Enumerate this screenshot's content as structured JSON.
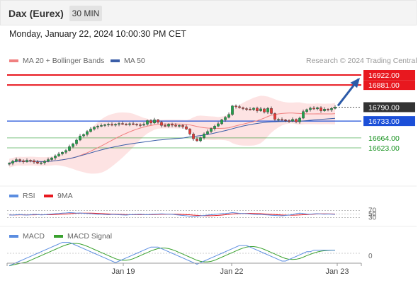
{
  "header": {
    "title": "Dax (Eurex)",
    "timeframe": "30 MIN"
  },
  "datetime": "Monday, January 22, 2024 10:00:30 PM CET",
  "legend": {
    "ma20_label": "MA 20 + Bollinger Bands",
    "ma50_label": "MA 50",
    "credit": "Research © 2024 Trading Central"
  },
  "colors": {
    "resistance": "#e8181f",
    "pivot": "#1b4fd8",
    "support": "#16911e",
    "up": "#1fa34a",
    "down": "#e53935",
    "ma20": "#f08080",
    "ma50": "#3b5ea8",
    "band": "#fde3e3",
    "rsi": "#5b8de0",
    "rsi_ma": "#e8181f",
    "macd": "#5b8de0",
    "macd_signal": "#39a12e"
  },
  "chart_data": [
    {
      "type": "candlestick",
      "levels": [
        {
          "value": 16922.0,
          "label": "16922.00",
          "kind": "resistance"
        },
        {
          "value": 16881.0,
          "label": "16881.00",
          "kind": "resistance"
        },
        {
          "value": 16790.0,
          "label": "16790.00",
          "kind": "last"
        },
        {
          "value": 16733.0,
          "label": "16733.00",
          "kind": "pivot"
        },
        {
          "value": 16664.0,
          "label": "16664.00",
          "kind": "support"
        },
        {
          "value": 16623.0,
          "label": "16623.00",
          "kind": "support"
        }
      ],
      "ylim": [
        16500,
        16950
      ],
      "close": [
        16560,
        16568,
        16575,
        16570,
        16566,
        16572,
        16570,
        16565,
        16560,
        16562,
        16568,
        16575,
        16582,
        16590,
        16598,
        16605,
        16612,
        16628,
        16640,
        16655,
        16672,
        16678,
        16690,
        16700,
        16708,
        16712,
        16715,
        16718,
        16720,
        16716,
        16720,
        16723,
        16721,
        16720,
        16722,
        16720,
        16718,
        16716,
        16720,
        16735,
        16725,
        16738,
        16728,
        16715,
        16712,
        16720,
        16716,
        16712,
        16715,
        16710,
        16700,
        16680,
        16660,
        16652,
        16665,
        16680,
        16690,
        16702,
        16712,
        16722,
        16738,
        16748,
        16760,
        16795,
        16792,
        16788,
        16784,
        16782,
        16780,
        16786,
        16775,
        16783,
        16770,
        16785,
        16764,
        16740,
        16740,
        16738,
        16735,
        16733,
        16740,
        16730,
        16745,
        16772,
        16780,
        16786,
        16783,
        16788,
        16775,
        16782,
        16779,
        16785,
        16790
      ],
      "series": [
        {
          "name": "MA 20 + Bollinger Bands"
        },
        {
          "name": "MA 50"
        }
      ],
      "x_ticks": [
        "Jan 19",
        "Jan 22",
        "Jan 23"
      ]
    },
    {
      "type": "line",
      "series": [
        {
          "name": "RSI"
        },
        {
          "name": "9MA"
        }
      ],
      "y_ticks": [
        "70",
        "50",
        "30"
      ],
      "ylim": [
        0,
        100
      ]
    },
    {
      "type": "line",
      "series": [
        {
          "name": "MACD"
        },
        {
          "name": "MACD Signal"
        }
      ],
      "y_ticks": [
        "0"
      ]
    }
  ]
}
